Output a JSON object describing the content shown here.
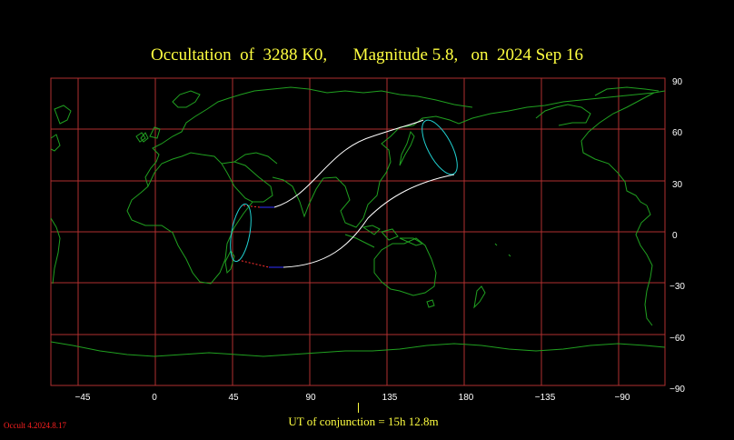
{
  "title": "Occultation  of  3288 K0,      Magnitude 5.8,   on  2024 Sep 16",
  "longitude_ticks": [
    "−45",
    "0",
    "45",
    "90",
    "135",
    "180",
    "−135",
    "−90"
  ],
  "latitude_ticks": [
    "90",
    "60",
    "30",
    "0",
    "−30",
    "−60",
    "−90"
  ],
  "ut_label": "UT of conjunction = 15h 12.8m",
  "version": "Occult 4.2024.8.17",
  "colors": {
    "background": "#000000",
    "grid": "#b03030",
    "coastline": "#20a020",
    "path": "#ffffff",
    "limb_ellipse": "#20d0d0",
    "day_extension": "#ff3030",
    "night_extension": "#3030ff",
    "text": "#ffff40"
  }
}
